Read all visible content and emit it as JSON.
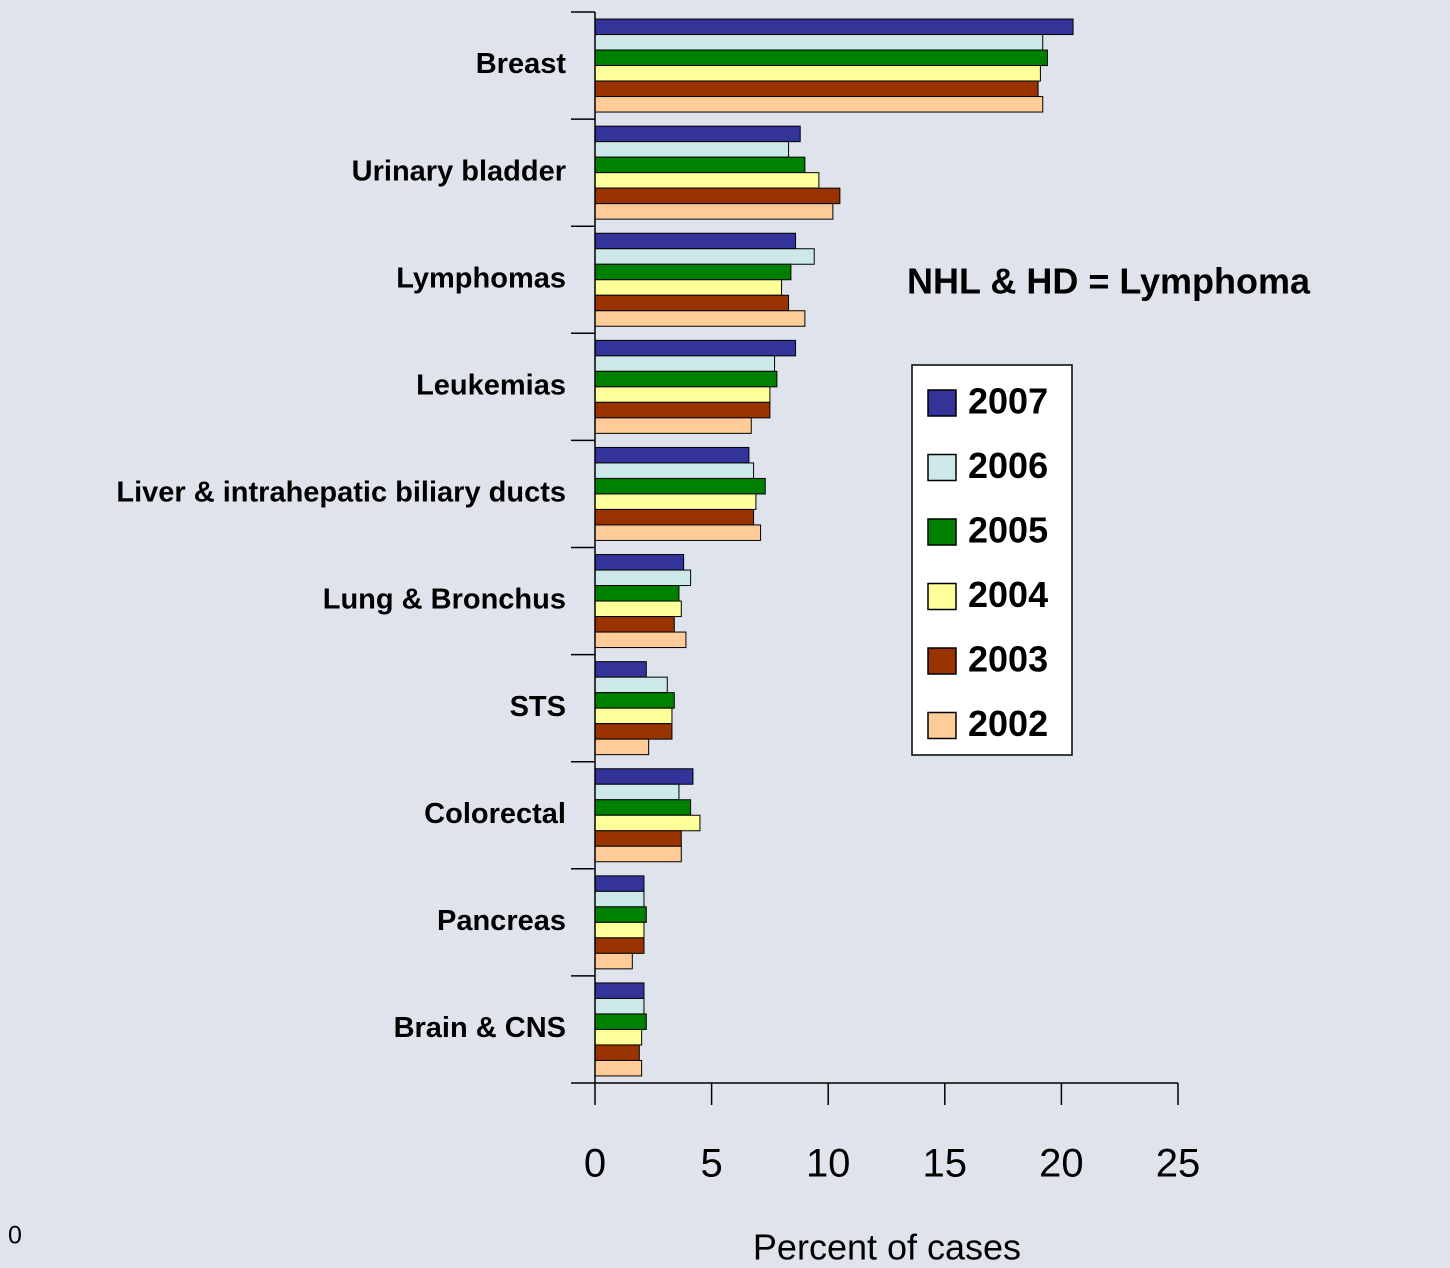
{
  "chart_data": {
    "type": "hbar",
    "annotation": "NHL & HD = Lymphoma",
    "x_label": "Percent of cases",
    "slide_number": "0",
    "categories": [
      "Breast",
      "Urinary bladder",
      "Lymphomas",
      "Leukemias",
      "Liver & intrahepatic biliary ducts",
      "Lung & Bronchus",
      "STS",
      "Colorectal",
      "Pancreas",
      "Brain & CNS"
    ],
    "series": [
      {
        "name": "2007",
        "color": "#333399",
        "values": [
          20.5,
          8.8,
          8.6,
          8.6,
          6.6,
          3.8,
          2.2,
          4.2,
          2.1,
          2.1
        ]
      },
      {
        "name": "2006",
        "color": "#cce8e8",
        "values": [
          19.2,
          8.3,
          9.4,
          7.7,
          6.8,
          4.1,
          3.1,
          3.6,
          2.1,
          2.1
        ]
      },
      {
        "name": "2005",
        "color": "#008000",
        "values": [
          19.4,
          9.0,
          8.4,
          7.8,
          7.3,
          3.6,
          3.4,
          4.1,
          2.2,
          2.2
        ]
      },
      {
        "name": "2004",
        "color": "#ffff99",
        "values": [
          19.1,
          9.6,
          8.0,
          7.5,
          6.9,
          3.7,
          3.3,
          4.5,
          2.1,
          2.0
        ]
      },
      {
        "name": "2003",
        "color": "#993300",
        "values": [
          19.0,
          10.5,
          8.3,
          7.5,
          6.8,
          3.4,
          3.3,
          3.7,
          2.1,
          1.9
        ]
      },
      {
        "name": "2002",
        "color": "#ffcc99",
        "values": [
          19.2,
          10.2,
          9.0,
          6.7,
          7.1,
          3.9,
          2.3,
          3.7,
          1.6,
          2.0
        ]
      }
    ],
    "xlim": [
      0,
      25
    ],
    "xticks": [
      0,
      5,
      10,
      15,
      20,
      25
    ],
    "grid": false
  }
}
